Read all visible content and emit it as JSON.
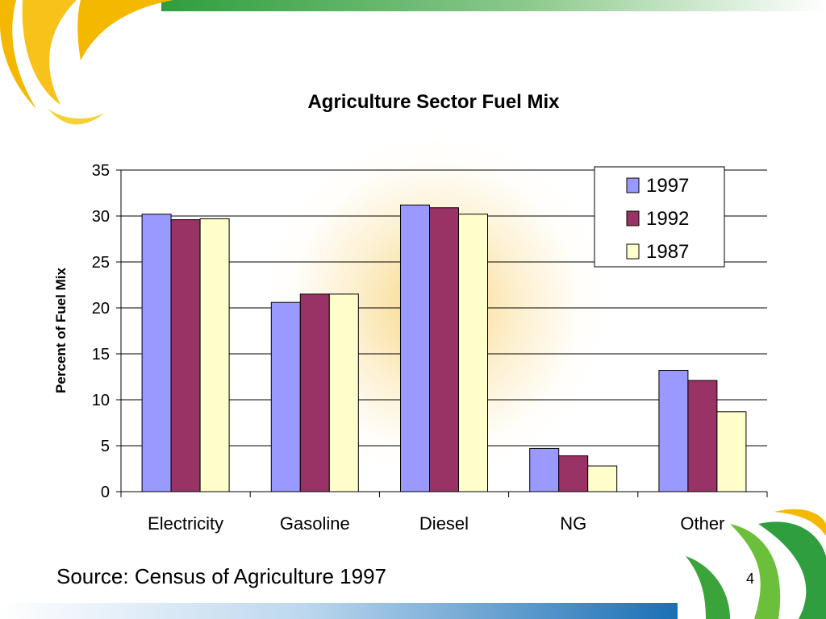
{
  "slide": {
    "source_text": "Source: Census of Agriculture 1997",
    "page_number": "4"
  },
  "colors": {
    "series_1997": "#9999ff",
    "series_1992": "#993366",
    "series_1987": "#ffffcc",
    "brand_green": "#3aa33a",
    "brand_gold": "#f5b800",
    "brand_blue": "#1a6fb5"
  },
  "chart_data": {
    "type": "bar",
    "title": "Agriculture Sector Fuel Mix",
    "xlabel": "",
    "ylabel": "Percent of Fuel Mix",
    "categories": [
      "Electricity",
      "Gasoline",
      "Diesel",
      "NG",
      "Other"
    ],
    "series": [
      {
        "name": "1997",
        "values": [
          30.2,
          20.6,
          31.2,
          4.7,
          13.2
        ]
      },
      {
        "name": "1992",
        "values": [
          29.6,
          21.5,
          30.9,
          3.9,
          12.1
        ]
      },
      {
        "name": "1987",
        "values": [
          29.7,
          21.5,
          30.2,
          2.8,
          8.7
        ]
      }
    ],
    "ylim": [
      0,
      35
    ],
    "yticks": [
      0,
      5,
      10,
      15,
      20,
      25,
      30,
      35
    ],
    "grid": true,
    "legend": "top-right"
  }
}
